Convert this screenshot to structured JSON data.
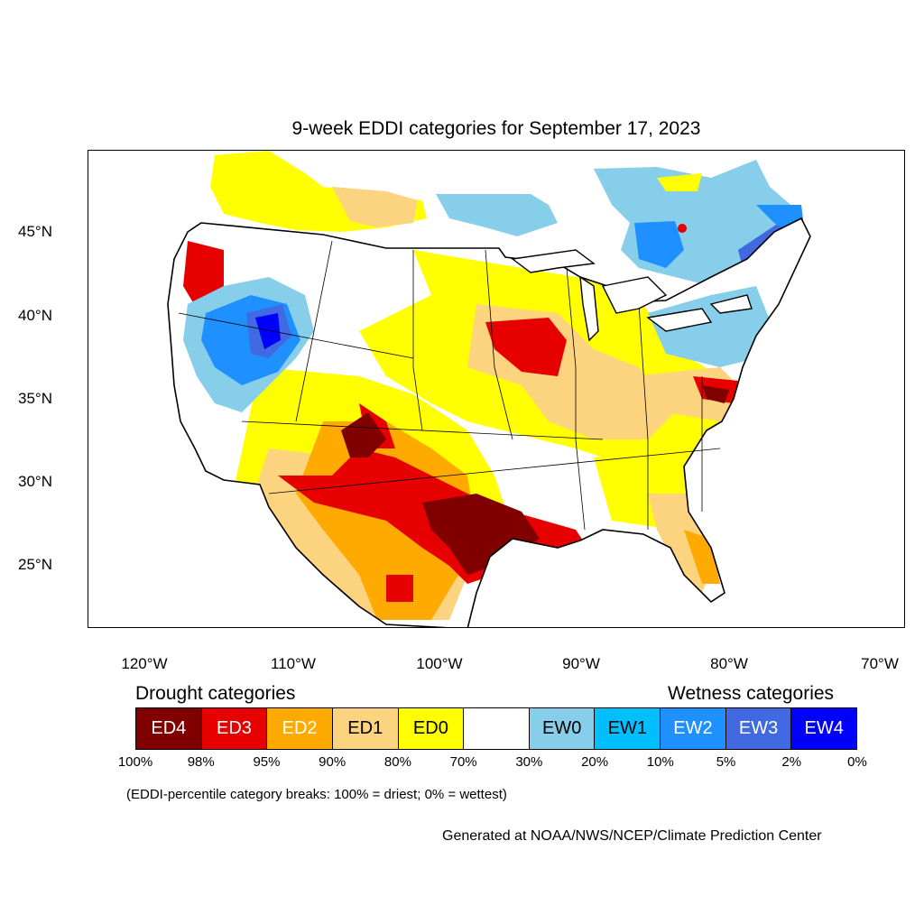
{
  "title": "9-week EDDI categories for September 17, 2023",
  "lat_labels": [
    "45°N",
    "40°N",
    "35°N",
    "30°N",
    "25°N"
  ],
  "lon_labels": [
    "120°W",
    "110°W",
    "100°W",
    "90°W",
    "80°W",
    "70°W"
  ],
  "legend": {
    "drought_heading": "Drought categories",
    "wetness_heading": "Wetness categories",
    "categories": [
      {
        "label": "ED4",
        "color": "#800000",
        "text_color": "#ffffff"
      },
      {
        "label": "ED3",
        "color": "#e60000",
        "text_color": "#ffffff"
      },
      {
        "label": "ED2",
        "color": "#ffaa00",
        "text_color": "#ffffff"
      },
      {
        "label": "ED1",
        "color": "#fcd37f",
        "text_color": "#000000"
      },
      {
        "label": "ED0",
        "color": "#ffff00",
        "text_color": "#000000"
      },
      {
        "label": "",
        "color": "#ffffff",
        "text_color": "#000000"
      },
      {
        "label": "EW0",
        "color": "#87ceeb",
        "text_color": "#000000"
      },
      {
        "label": "EW1",
        "color": "#00bfff",
        "text_color": "#000000"
      },
      {
        "label": "EW2",
        "color": "#1e90ff",
        "text_color": "#ffffff"
      },
      {
        "label": "EW3",
        "color": "#4169e1",
        "text_color": "#ffffff"
      },
      {
        "label": "EW4",
        "color": "#0000ff",
        "text_color": "#ffffff"
      }
    ],
    "percentiles": [
      "100%",
      "98%",
      "95%",
      "90%",
      "80%",
      "70%",
      "30%",
      "20%",
      "10%",
      "5%",
      "2%",
      "0%"
    ]
  },
  "note": "(EDDI-percentile category breaks: 100% = driest; 0% = wettest)",
  "credit": "Generated at NOAA/NWS/NCEP/Climate Prediction Center"
}
